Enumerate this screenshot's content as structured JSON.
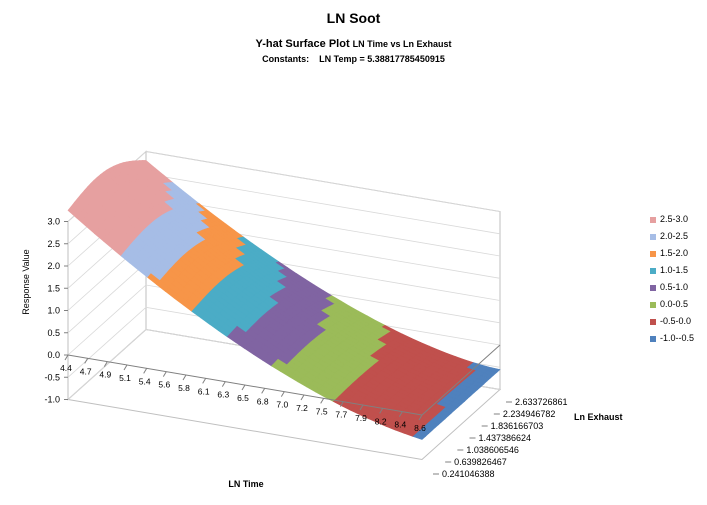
{
  "chart_data": {
    "type": "surface",
    "title": "LN Soot",
    "subtitle_main": "Y-hat  Surface  Plot",
    "subtitle_detail": "LN Time vs Ln Exhaust",
    "constants_label": "Constants:",
    "constants_value": "LN Temp = 5.38817785450915",
    "xlabel": "LN Time",
    "ylabel": "Ln Exhaust",
    "zlabel": "Response  Value",
    "x_ticks": [
      "4.4",
      "4.7",
      "4.9",
      "5.1",
      "5.4",
      "5.6",
      "5.8",
      "6.1",
      "6.3",
      "6.5",
      "6.8",
      "7.0",
      "7.2",
      "7.5",
      "7.7",
      "7.9",
      "8.2",
      "8.4",
      "8.6"
    ],
    "y_ticks": [
      "0.241046388",
      "0.639826467",
      "1.038606546",
      "1.437386624",
      "1.836166703",
      "2.234946782",
      "2.633726861"
    ],
    "z_ticks": [
      "-1.0",
      "-0.5",
      "0.0",
      "0.5",
      "1.0",
      "1.5",
      "2.0",
      "2.5",
      "3.0"
    ],
    "zlim": [
      -1.0,
      3.0
    ],
    "legend_position": "right",
    "bands": [
      {
        "label": "2.5-3.0",
        "color": "#e6a0a0"
      },
      {
        "label": "2.0-2.5",
        "color": "#a6bde6"
      },
      {
        "label": "1.5-2.0",
        "color": "#f79548"
      },
      {
        "label": "1.0-1.5",
        "color": "#4bacc6"
      },
      {
        "label": "0.5-1.0",
        "color": "#8064a2"
      },
      {
        "label": "0.0-0.5",
        "color": "#9bbb59"
      },
      {
        "label": "-0.5-0.0",
        "color": "#c0504d"
      },
      {
        "label": "-1.0--0.5",
        "color": "#4f81bd"
      }
    ]
  }
}
